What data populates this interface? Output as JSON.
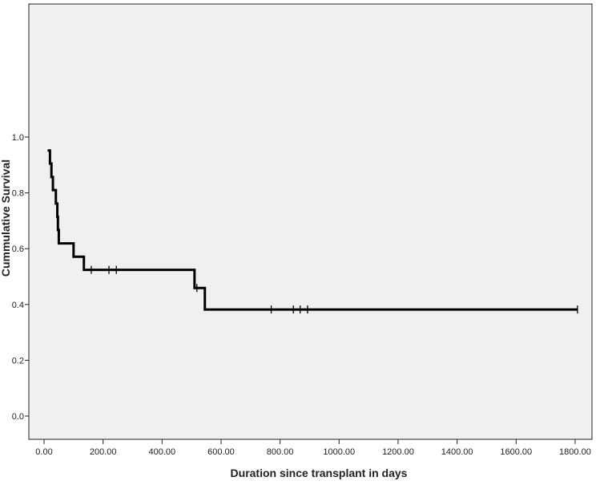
{
  "chart_data": {
    "type": "line",
    "subtype": "kaplan-meier step",
    "title": "",
    "xlabel": "Duration since transplant in days",
    "ylabel": "Cummulative Survival",
    "xlim": [
      0,
      1850
    ],
    "ylim": [
      -0.08,
      1.06
    ],
    "xticks": [
      "0.00",
      "200.00",
      "400.00",
      "600.00",
      "800.00",
      "1000.00",
      "1200.00",
      "1400.00",
      "1600.00",
      "1800.00"
    ],
    "yticks": [
      "0.0",
      "0.2",
      "0.4",
      "0.6",
      "0.8",
      "1.0"
    ],
    "grid": false,
    "background": "#f0f0f0",
    "line_color": "#000000",
    "steps": [
      [
        12,
        0.952
      ],
      [
        20,
        0.905
      ],
      [
        25,
        0.857
      ],
      [
        30,
        0.81
      ],
      [
        40,
        0.762
      ],
      [
        45,
        0.714
      ],
      [
        47,
        0.667
      ],
      [
        50,
        0.619
      ],
      [
        100,
        0.571
      ],
      [
        135,
        0.524
      ],
      [
        510,
        0.459
      ],
      [
        545,
        0.382
      ]
    ],
    "end_time": 1808,
    "censored": [
      160,
      220,
      245,
      518,
      770,
      845,
      868,
      893,
      1808
    ]
  }
}
